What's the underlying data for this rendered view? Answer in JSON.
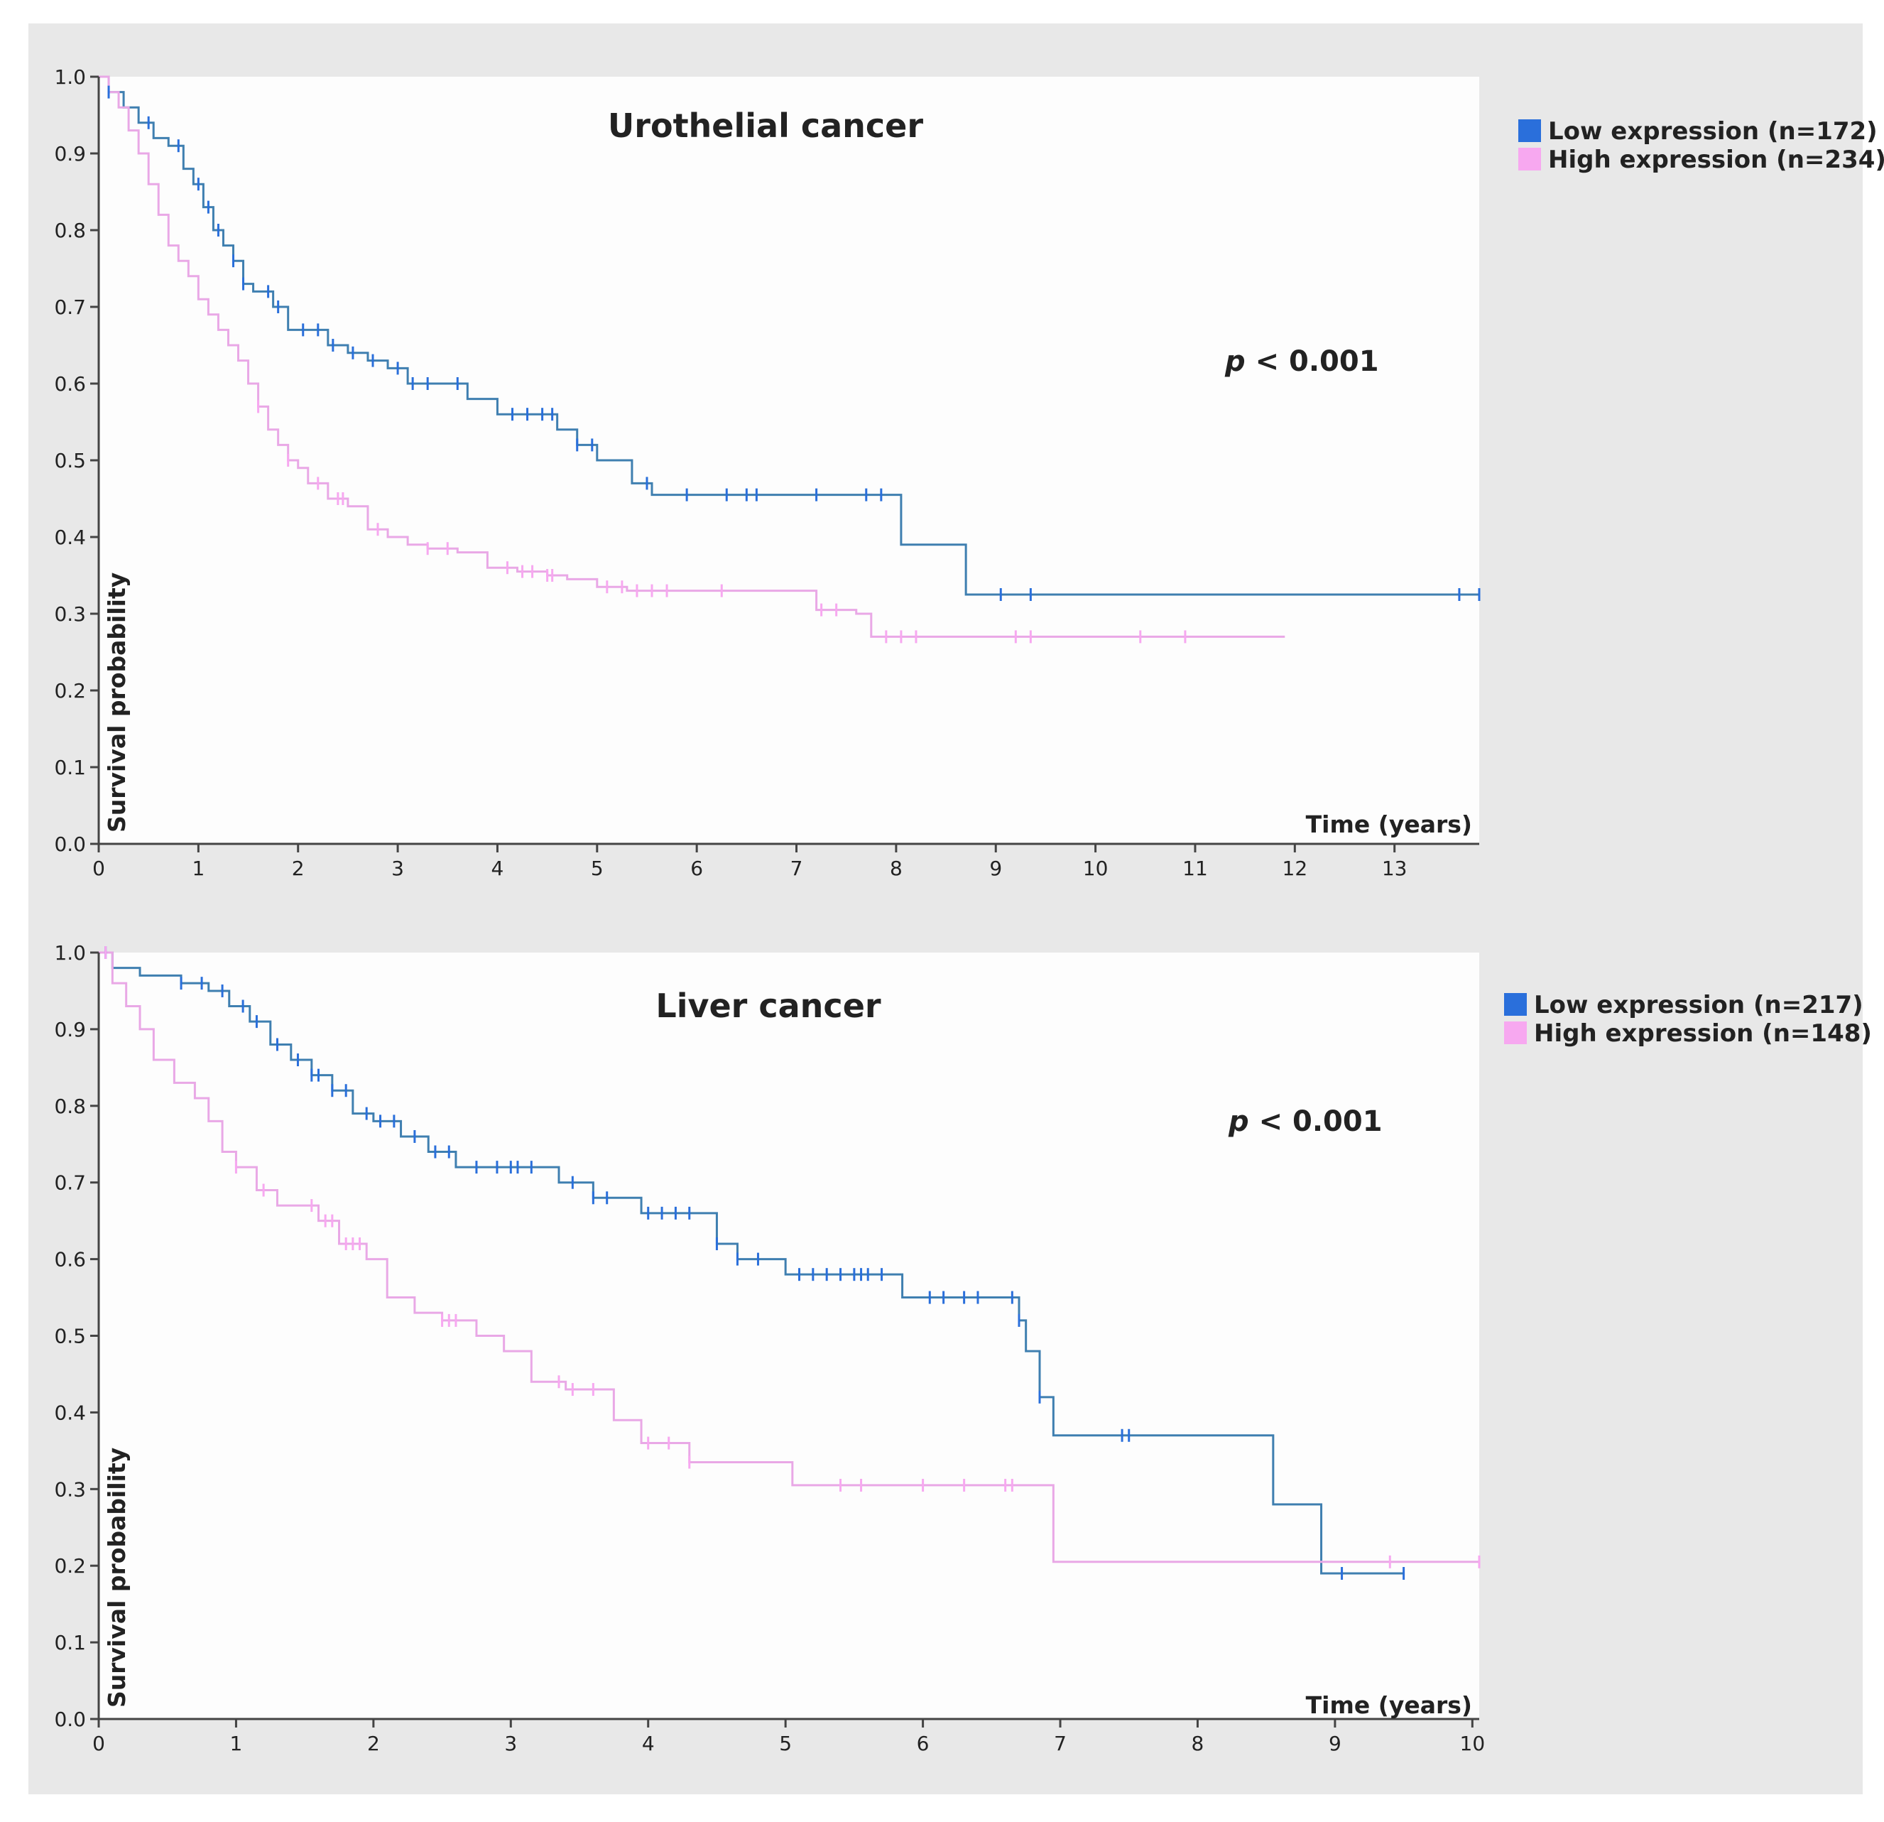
{
  "figure_colors": {
    "outer_background": "#e8e8e8",
    "plot_background": "#fdfdfd",
    "axis": "#444444",
    "text": "#222222"
  },
  "chart_data": [
    {
      "type": "line",
      "subtype": "kaplan-meier",
      "title": "Urothelial cancer",
      "xlabel": "Time (years)",
      "ylabel": "Survival probability",
      "xlim": [
        0,
        13.85
      ],
      "ylim": [
        0,
        1.0
      ],
      "x_ticks": [
        "0",
        "1",
        "2",
        "3",
        "4",
        "5",
        "6",
        "7",
        "8",
        "9",
        "10",
        "11",
        "12",
        "13"
      ],
      "y_ticks": [
        "0.0",
        "0.1",
        "0.2",
        "0.3",
        "0.4",
        "0.5",
        "0.6",
        "0.7",
        "0.8",
        "0.9",
        "1.0"
      ],
      "p_value_label": "p",
      "p_value_rest": " < 0.001",
      "legend_position": "top-right",
      "series": [
        {
          "name": "Low expression (n=172)",
          "color": "#2a6fdb",
          "line_color": "#3f7fb0",
          "x": [
            0,
            0.1,
            0.25,
            0.4,
            0.55,
            0.7,
            0.85,
            0.95,
            1.05,
            1.15,
            1.25,
            1.35,
            1.45,
            1.55,
            1.75,
            1.9,
            2.1,
            2.3,
            2.5,
            2.7,
            2.9,
            3.1,
            3.5,
            3.7,
            4.0,
            4.4,
            4.6,
            4.8,
            5.0,
            5.1,
            5.35,
            5.55,
            7.0,
            8.05,
            8.5,
            8.7,
            13.85
          ],
          "y": [
            1.0,
            0.98,
            0.96,
            0.94,
            0.92,
            0.91,
            0.88,
            0.86,
            0.83,
            0.8,
            0.78,
            0.76,
            0.73,
            0.72,
            0.7,
            0.67,
            0.67,
            0.65,
            0.64,
            0.63,
            0.62,
            0.6,
            0.6,
            0.58,
            0.56,
            0.56,
            0.54,
            0.52,
            0.5,
            0.5,
            0.47,
            0.455,
            0.455,
            0.39,
            0.39,
            0.325,
            0.325
          ],
          "censor_x": [
            0.1,
            0.5,
            0.8,
            1.0,
            1.1,
            1.2,
            1.35,
            1.45,
            1.7,
            1.8,
            2.05,
            2.2,
            2.35,
            2.55,
            2.75,
            3.0,
            3.15,
            3.3,
            3.6,
            4.15,
            4.3,
            4.45,
            4.55,
            4.8,
            4.95,
            5.5,
            5.9,
            6.3,
            6.5,
            6.6,
            7.2,
            7.7,
            7.85,
            9.05,
            9.35,
            13.65,
            13.85
          ]
        },
        {
          "name": "High expression (n=234)",
          "color": "#f7a8f0",
          "line_color": "#e9a8e6",
          "x": [
            0,
            0.1,
            0.2,
            0.3,
            0.4,
            0.5,
            0.6,
            0.7,
            0.8,
            0.9,
            1.0,
            1.1,
            1.2,
            1.3,
            1.4,
            1.5,
            1.6,
            1.7,
            1.8,
            1.9,
            2.0,
            2.1,
            2.3,
            2.5,
            2.7,
            2.9,
            3.1,
            3.3,
            3.6,
            3.9,
            4.2,
            4.5,
            4.7,
            5.0,
            5.3,
            7.2,
            7.6,
            7.75,
            11.9
          ],
          "y": [
            1.0,
            0.98,
            0.96,
            0.93,
            0.9,
            0.86,
            0.82,
            0.78,
            0.76,
            0.74,
            0.71,
            0.69,
            0.67,
            0.65,
            0.63,
            0.6,
            0.57,
            0.54,
            0.52,
            0.5,
            0.49,
            0.47,
            0.45,
            0.44,
            0.41,
            0.4,
            0.39,
            0.385,
            0.38,
            0.36,
            0.355,
            0.35,
            0.345,
            0.335,
            0.33,
            0.305,
            0.3,
            0.27,
            0.27
          ],
          "censor_x": [
            1.6,
            1.9,
            2.2,
            2.4,
            2.45,
            2.8,
            3.3,
            3.5,
            4.1,
            4.25,
            4.35,
            4.5,
            4.55,
            5.1,
            5.25,
            5.4,
            5.55,
            5.7,
            6.25,
            7.25,
            7.4,
            7.9,
            8.05,
            8.2,
            9.2,
            9.35,
            10.45,
            10.9
          ]
        }
      ]
    },
    {
      "type": "line",
      "subtype": "kaplan-meier",
      "title": "Liver cancer",
      "xlabel": "Time (years)",
      "ylabel": "Survival probability",
      "xlim": [
        0,
        10.05
      ],
      "ylim": [
        0,
        1.0
      ],
      "x_ticks": [
        "0",
        "1",
        "2",
        "3",
        "4",
        "5",
        "6",
        "7",
        "8",
        "9",
        "10"
      ],
      "y_ticks": [
        "0.0",
        "0.1",
        "0.2",
        "0.3",
        "0.4",
        "0.5",
        "0.6",
        "0.7",
        "0.8",
        "0.9",
        "1.0"
      ],
      "p_value_label": "p",
      "p_value_rest": " < 0.001",
      "legend_position": "top-right",
      "series": [
        {
          "name": "Low expression (n=217)",
          "color": "#2a6fdb",
          "line_color": "#3f7fb0",
          "x": [
            0,
            0.1,
            0.3,
            0.6,
            0.8,
            0.95,
            1.1,
            1.25,
            1.4,
            1.55,
            1.7,
            1.85,
            2.0,
            2.2,
            2.4,
            2.6,
            3.1,
            3.35,
            3.6,
            3.8,
            3.95,
            4.4,
            4.5,
            4.65,
            5.0,
            5.8,
            5.85,
            6.7,
            6.75,
            6.85,
            6.95,
            8.55,
            8.9,
            9.5
          ],
          "y": [
            1.0,
            0.98,
            0.97,
            0.96,
            0.95,
            0.93,
            0.91,
            0.88,
            0.86,
            0.84,
            0.82,
            0.79,
            0.78,
            0.76,
            0.74,
            0.72,
            0.72,
            0.7,
            0.68,
            0.68,
            0.66,
            0.66,
            0.62,
            0.6,
            0.58,
            0.58,
            0.55,
            0.52,
            0.48,
            0.42,
            0.37,
            0.28,
            0.19,
            0.19
          ],
          "censor_x": [
            0.05,
            0.6,
            0.75,
            0.9,
            1.05,
            1.15,
            1.3,
            1.45,
            1.55,
            1.6,
            1.7,
            1.8,
            1.95,
            2.05,
            2.15,
            2.3,
            2.45,
            2.55,
            2.75,
            2.9,
            3.0,
            3.05,
            3.15,
            3.45,
            3.6,
            3.7,
            4.0,
            4.1,
            4.2,
            4.3,
            4.5,
            4.65,
            4.8,
            5.1,
            5.2,
            5.3,
            5.4,
            5.5,
            5.55,
            5.6,
            5.7,
            6.05,
            6.15,
            6.3,
            6.4,
            6.65,
            6.7,
            6.85,
            7.45,
            7.5,
            9.05,
            9.5
          ]
        },
        {
          "name": "High expression (n=148)",
          "color": "#f7a8f0",
          "line_color": "#e9a8e6",
          "x": [
            0,
            0.1,
            0.2,
            0.3,
            0.4,
            0.55,
            0.7,
            0.8,
            0.9,
            1.0,
            1.15,
            1.3,
            1.6,
            1.75,
            1.95,
            2.1,
            2.3,
            2.5,
            2.75,
            2.95,
            3.15,
            3.4,
            3.75,
            3.95,
            4.15,
            4.3,
            5.05,
            6.95,
            10.05
          ],
          "y": [
            1.0,
            0.96,
            0.93,
            0.9,
            0.86,
            0.83,
            0.81,
            0.78,
            0.74,
            0.72,
            0.69,
            0.67,
            0.65,
            0.62,
            0.6,
            0.55,
            0.53,
            0.52,
            0.5,
            0.48,
            0.44,
            0.43,
            0.39,
            0.36,
            0.36,
            0.335,
            0.305,
            0.205,
            0.205
          ],
          "censor_x": [
            0.05,
            1.0,
            1.2,
            1.55,
            1.65,
            1.7,
            1.8,
            1.85,
            1.9,
            2.5,
            2.55,
            2.6,
            3.35,
            3.45,
            3.6,
            4.0,
            4.15,
            4.3,
            5.4,
            5.55,
            6.0,
            6.3,
            6.6,
            6.65,
            9.4,
            10.05
          ]
        }
      ]
    }
  ]
}
